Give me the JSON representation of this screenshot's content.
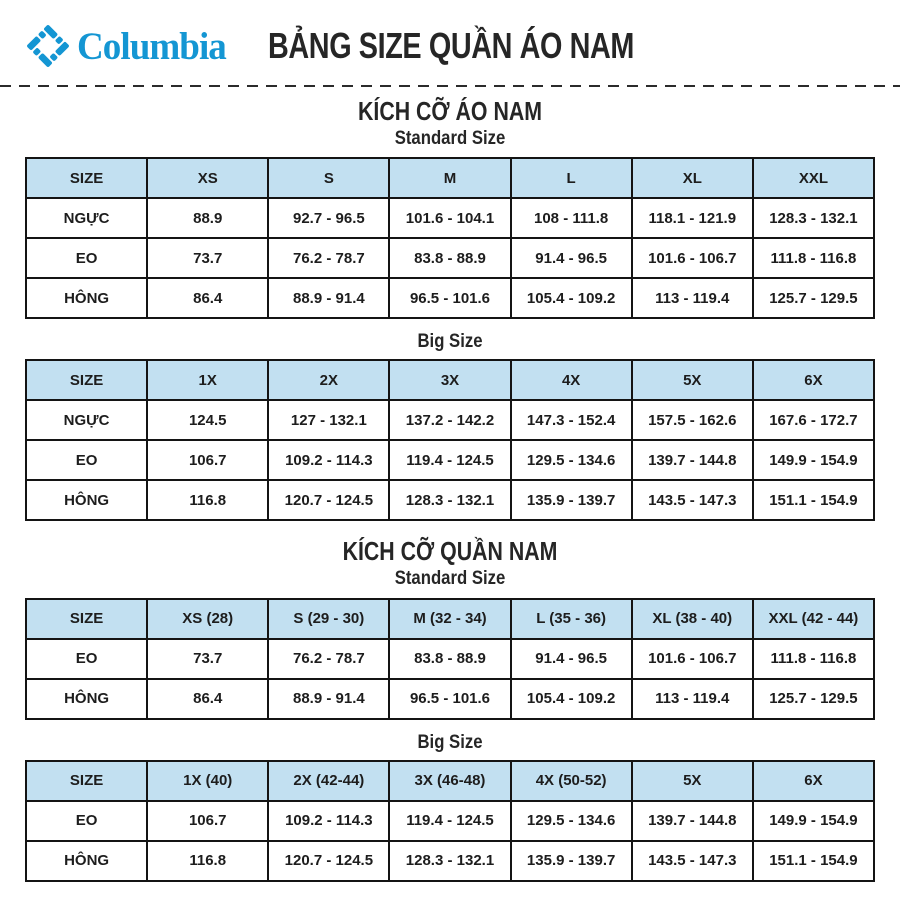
{
  "brand": {
    "wordmark": "Columbia"
  },
  "header": {
    "title": "BẢNG SIZE QUẦN ÁO NAM"
  },
  "colors": {
    "brand_blue": "#1496d3",
    "table_header_bg": "#c2e0f1",
    "border": "#141414",
    "text": "#1d1d1d"
  },
  "sections": [
    {
      "title": "KÍCH CỠ ÁO NAM",
      "tables": [
        {
          "subtitle": "Standard Size",
          "header": [
            "SIZE",
            "XS",
            "S",
            "M",
            "L",
            "XL",
            "XXL"
          ],
          "rows": [
            {
              "label": "NGỰC",
              "values": [
                "88.9",
                "92.7 - 96.5",
                "101.6 - 104.1",
                "108 - 111.8",
                "118.1 - 121.9",
                "128.3 - 132.1"
              ]
            },
            {
              "label": "EO",
              "values": [
                "73.7",
                "76.2 - 78.7",
                "83.8 - 88.9",
                "91.4 - 96.5",
                "101.6 - 106.7",
                "111.8 - 116.8"
              ]
            },
            {
              "label": "HÔNG",
              "values": [
                "86.4",
                "88.9 - 91.4",
                "96.5 - 101.6",
                "105.4 - 109.2",
                "113 - 119.4",
                "125.7 - 129.5"
              ]
            }
          ]
        },
        {
          "subtitle": "Big Size",
          "header": [
            "SIZE",
            "1X",
            "2X",
            "3X",
            "4X",
            "5X",
            "6X"
          ],
          "rows": [
            {
              "label": "NGỰC",
              "values": [
                "124.5",
                "127 - 132.1",
                "137.2 - 142.2",
                "147.3 - 152.4",
                "157.5 - 162.6",
                "167.6 - 172.7"
              ]
            },
            {
              "label": "EO",
              "values": [
                "106.7",
                "109.2 - 114.3",
                "119.4 - 124.5",
                "129.5 - 134.6",
                "139.7 - 144.8",
                "149.9 - 154.9"
              ]
            },
            {
              "label": "HÔNG",
              "values": [
                "116.8",
                "120.7 - 124.5",
                "128.3 - 132.1",
                "135.9 - 139.7",
                "143.5 - 147.3",
                "151.1 - 154.9"
              ]
            }
          ]
        }
      ]
    },
    {
      "title": "KÍCH CỠ QUẦN NAM",
      "tables": [
        {
          "subtitle": "Standard Size",
          "header": [
            "SIZE",
            "XS (28)",
            "S (29 - 30)",
            "M (32 - 34)",
            "L (35 - 36)",
            "XL (38 - 40)",
            "XXL (42 - 44)"
          ],
          "rows": [
            {
              "label": "EO",
              "values": [
                "73.7",
                "76.2 - 78.7",
                "83.8 - 88.9",
                "91.4 - 96.5",
                "101.6 - 106.7",
                "111.8 - 116.8"
              ]
            },
            {
              "label": "HÔNG",
              "values": [
                "86.4",
                "88.9 - 91.4",
                "96.5 - 101.6",
                "105.4 - 109.2",
                "113 - 119.4",
                "125.7 - 129.5"
              ]
            }
          ]
        },
        {
          "subtitle": "Big Size",
          "header": [
            "SIZE",
            "1X (40)",
            "2X (42-44)",
            "3X (46-48)",
            "4X (50-52)",
            "5X",
            "6X"
          ],
          "rows": [
            {
              "label": "EO",
              "values": [
                "106.7",
                "109.2 - 114.3",
                "119.4 - 124.5",
                "129.5 - 134.6",
                "139.7 - 144.8",
                "149.9 - 154.9"
              ]
            },
            {
              "label": "HÔNG",
              "values": [
                "116.8",
                "120.7 - 124.5",
                "128.3 - 132.1",
                "135.9 - 139.7",
                "143.5 - 147.3",
                "151.1 - 154.9"
              ]
            }
          ]
        }
      ]
    }
  ]
}
